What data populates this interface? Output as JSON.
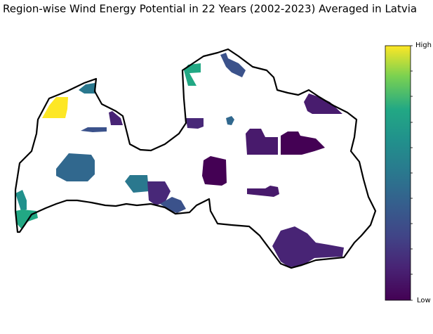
{
  "title": "Region-wise Wind Energy Potential in 22 Years (2002-2023) Averaged in Latvia",
  "colorbar": {
    "high_label": "High",
    "low_label": "Low"
  }
}
